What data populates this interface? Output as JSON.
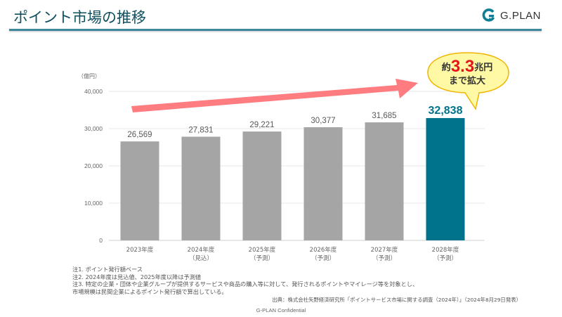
{
  "header": {
    "title": "ポイント市場の推移",
    "brand": "G.PLAN"
  },
  "colors": {
    "accent": "#3d8aa0",
    "bar_default": "#a5a5a5",
    "bar_highlight": "#00738c",
    "arrow": "#ff7c80",
    "bubble_fill": "#fff9a6",
    "bubble_stroke": "#f0b400",
    "emphasis_red": "#e8141c"
  },
  "chart_data": {
    "type": "bar",
    "title": "ポイント市場の推移",
    "ylabel": "（億円）",
    "xlabel": "",
    "ylim": [
      0,
      40000
    ],
    "yticks": [
      0,
      10000,
      20000,
      30000,
      40000
    ],
    "ytick_labels": [
      "0",
      "10,000",
      "20,000",
      "30,000",
      "40,000"
    ],
    "grid": true,
    "categories": [
      {
        "line1": "2023年度",
        "line2": ""
      },
      {
        "line1": "2024年度",
        "line2": "（見込）"
      },
      {
        "line1": "2025年度",
        "line2": "（予測）"
      },
      {
        "line1": "2026年度",
        "line2": "（予測）"
      },
      {
        "line1": "2027年度",
        "line2": "（予測）"
      },
      {
        "line1": "2028年度",
        "line2": "（予測）"
      }
    ],
    "values": [
      26569,
      27831,
      29221,
      30377,
      31685,
      32838
    ],
    "value_labels": [
      "26,569",
      "27,831",
      "29,221",
      "30,377",
      "31,685",
      "32,838"
    ],
    "highlight_index": 5,
    "annotation": {
      "prefix": "約",
      "number": "3.3",
      "suffix": "兆円",
      "line2": "まで拡大"
    }
  },
  "notes": [
    "注1. ポイント発行額ベース",
    "注2. 2024年度は見込値、2025年度以降は予測値",
    "注3. 特定の企業・団体や企業グループが提供するサービスや商品の購入等に対して、発行されるポイントやマイレージ等を対象とし、",
    "市場規模は民間企業によるポイント発行額で算出している。"
  ],
  "source": "出典：株式会社矢野経済研究所「ポイントサービス市場に関する調査（2024年）」（2024年8月29日発表）",
  "footer": "G-PLAN Confidential"
}
